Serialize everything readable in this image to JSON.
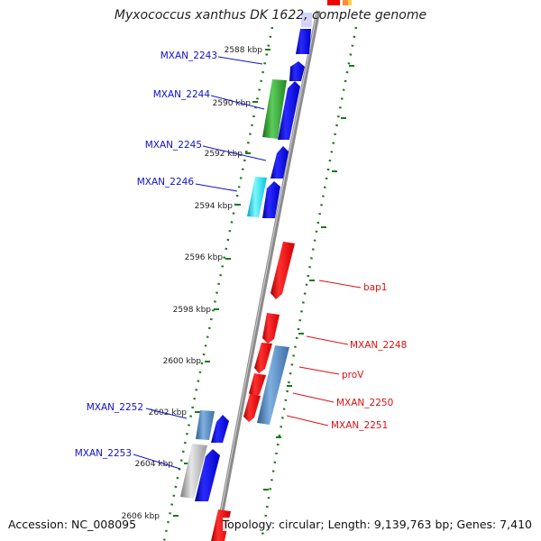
{
  "title": "Myxococcus xanthus DK 1622, complete genome",
  "footer": {
    "accession": "Accession: NC_008095",
    "summary": "Topology: circular; Length: 9,139,763 bp; Genes: 7,410"
  },
  "ticks": [
    "2588 kbp",
    "2590 kbp",
    "2592 kbp",
    "2594 kbp",
    "2596 kbp",
    "2598 kbp",
    "2600 kbp",
    "2602 kbp",
    "2604 kbp",
    "2606 kbp"
  ],
  "left_labels": [
    "MXAN_2243",
    "MXAN_2244",
    "MXAN_2245",
    "MXAN_2246",
    "MXAN_2252",
    "MXAN_2253"
  ],
  "right_labels": [
    "bap1",
    "MXAN_2248",
    "proV",
    "MXAN_2250",
    "MXAN_2251"
  ],
  "colors": {
    "forward_gene": "#0000ee",
    "reverse_gene": "#ee0000",
    "highlight_green": "#2e9e2e",
    "highlight_cyan": "#00d8ee",
    "highlight_steelblue": "#4a7fb8",
    "highlight_gray": "#a0a0a0",
    "backbone": "#8c8c8c",
    "tick": "#1a7a1a"
  }
}
